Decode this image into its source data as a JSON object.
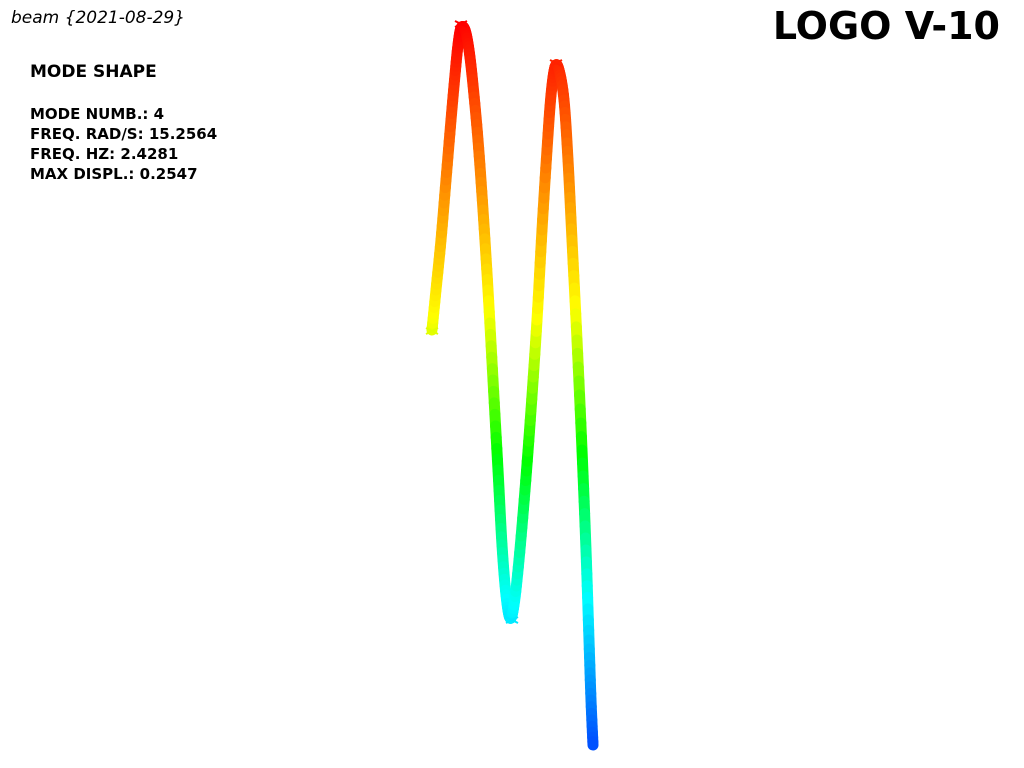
{
  "header": {
    "model_title": "beam {2021-08-29}",
    "logo": "LOGO V-10"
  },
  "info": {
    "heading": "MODE SHAPE",
    "rows": [
      {
        "label": "MODE NUMB.:",
        "value": "4"
      },
      {
        "label": "FREQ. RAD/S:",
        "value": "15.2564"
      },
      {
        "label": "FREQ. HZ:",
        "value": "2.4281"
      },
      {
        "label": "MAX DISPL.:",
        "value": "0.2547"
      }
    ]
  },
  "colormap": {
    "stops": [
      "#0050ff",
      "#00ffff",
      "#00ff00",
      "#ffff00",
      "#ff8000",
      "#ff0000"
    ]
  }
}
